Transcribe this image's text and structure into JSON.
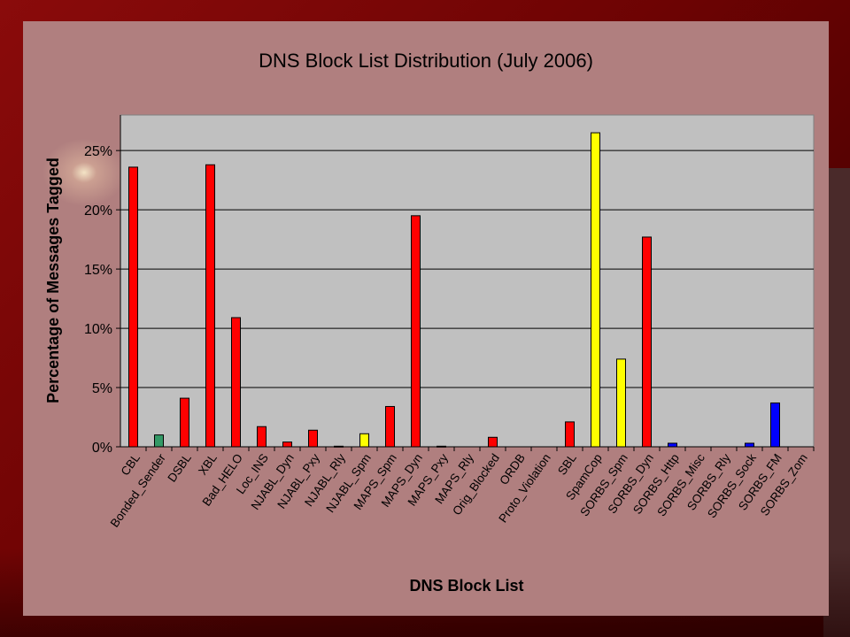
{
  "chart_data": {
    "type": "bar",
    "title": "DNS Block List Distribution (July 2006)",
    "xlabel": "DNS Block List",
    "ylabel": "Percentage of Messages Tagged",
    "ylim": [
      0,
      28
    ],
    "yticks": [
      0,
      5,
      10,
      15,
      20,
      25
    ],
    "ytick_labels": [
      "0%",
      "5%",
      "10%",
      "15%",
      "20%",
      "25%"
    ],
    "grid": true,
    "legend": "none",
    "categories": [
      "CBL",
      "Bonded_Sender",
      "DSBL",
      "XBL",
      "Bad_HELO",
      "Loc_INS",
      "NJABL_Dyn",
      "NJABL_Pxy",
      "NJABL_Rly",
      "NJABL_Spm",
      "MAPS_Spm",
      "MAPS_Dyn",
      "MAPS_Pxy",
      "MAPS_Rly",
      "Orig_Blocked",
      "ORDB",
      "Proto_Violation",
      "SBL",
      "SpamCop",
      "SORBS_Spm",
      "SORBS_Dyn",
      "SORBS_Http",
      "SORBS_Misc",
      "SORBS_Rly",
      "SORBS_Sock",
      "SORBS_FM",
      "SORBS_Zom"
    ],
    "values": [
      23.6,
      1.0,
      4.1,
      23.8,
      10.9,
      1.7,
      0.4,
      1.4,
      0.05,
      1.1,
      3.4,
      19.5,
      0.05,
      0.0,
      0.8,
      0.0,
      0.0,
      2.1,
      26.5,
      7.4,
      17.7,
      0.3,
      0.0,
      0.0,
      0.3,
      3.7,
      0.0
    ],
    "colors": [
      "#ff0000",
      "#339966",
      "#ff0000",
      "#ff0000",
      "#ff0000",
      "#ff0000",
      "#ff0000",
      "#ff0000",
      "#ff0000",
      "#ffff00",
      "#ff0000",
      "#ff0000",
      "#339966",
      "#ff0000",
      "#ff0000",
      "#ff0000",
      "#ff0000",
      "#ff0000",
      "#ffff00",
      "#ffff00",
      "#ff0000",
      "#0000ff",
      "#0000ff",
      "#0000ff",
      "#0000ff",
      "#0000ff",
      "#0000ff"
    ]
  }
}
